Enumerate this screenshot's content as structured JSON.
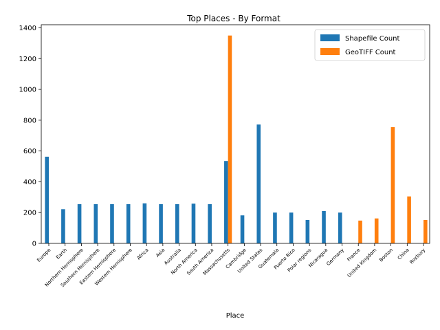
{
  "chart_data": {
    "type": "bar",
    "title": "Top Places - By Format",
    "xlabel": "Place",
    "ylabel": "",
    "ylim": [
      0,
      1420
    ],
    "yticks": [
      0,
      200,
      400,
      600,
      800,
      1000,
      1200,
      1400
    ],
    "legend_position": "top-right",
    "categories": [
      "Europe",
      "Earth",
      "Northern Hemisphere",
      "Southern Hemisphere",
      "Eastern Hemisphere",
      "Western Hemisphere",
      "Africa",
      "Asia",
      "Australia",
      "North America",
      "South America",
      "Massachusetts",
      "Cambridge",
      "United States",
      "Guatemala",
      "Puerto Rico",
      "Polar regions",
      "Nicaragua",
      "Germany",
      "France",
      "United Kingdom",
      "Boston",
      "China",
      "Roxbury"
    ],
    "series": [
      {
        "name": "Shapefile Count",
        "color": "#1f77b4",
        "values": [
          563,
          222,
          255,
          255,
          255,
          255,
          260,
          255,
          255,
          258,
          255,
          535,
          182,
          772,
          200,
          200,
          152,
          210,
          200,
          0,
          0,
          0,
          0,
          0
        ]
      },
      {
        "name": "GeoTIFF Count",
        "color": "#ff7f0e",
        "values": [
          0,
          0,
          0,
          0,
          0,
          0,
          0,
          0,
          0,
          0,
          0,
          1350,
          0,
          0,
          0,
          0,
          0,
          0,
          0,
          148,
          162,
          755,
          305,
          152
        ]
      }
    ]
  }
}
